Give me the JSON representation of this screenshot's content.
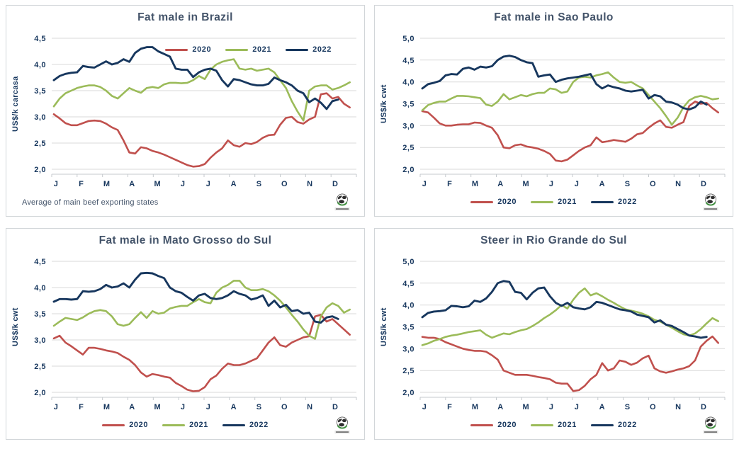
{
  "colors": {
    "red_2020": "#C0504D",
    "green_2021": "#9BBB59",
    "navy_2022": "#17375E",
    "grid": "#D9D9D9",
    "axis_line": "#C4C9CD",
    "tick_text": "#17375E",
    "title_text": "#44546A",
    "panel_border": "#D2D6D9"
  },
  "legend_labels": [
    "2020",
    "2021",
    "2022"
  ],
  "chart_data": [
    {
      "type": "line",
      "title": "Fat male in Brazil",
      "ylabel": "US$/k carcasa",
      "footnote": "Average  of main beef exporting states",
      "legend_position": "top-right",
      "ylim": [
        2.0,
        4.5
      ],
      "yticks": [
        4.5,
        4.0,
        3.5,
        3.0,
        2.5,
        2.0
      ],
      "grid": true,
      "x_labels": [
        "J",
        "F",
        "M",
        "A",
        "M",
        "J",
        "J",
        "A",
        "S",
        "O",
        "N",
        "D"
      ],
      "series": [
        {
          "name": "2020",
          "color": "#C0504D",
          "width": 2.6,
          "values": [
            3.05,
            2.97,
            2.88,
            2.84,
            2.84,
            2.88,
            2.92,
            2.93,
            2.92,
            2.87,
            2.8,
            2.75,
            2.55,
            2.32,
            2.3,
            2.42,
            2.4,
            2.35,
            2.32,
            2.28,
            2.23,
            2.18,
            2.13,
            2.08,
            2.05,
            2.06,
            2.1,
            2.22,
            2.32,
            2.4,
            2.55,
            2.46,
            2.43,
            2.5,
            2.48,
            2.52,
            2.6,
            2.65,
            2.66,
            2.85,
            2.98,
            3.0,
            2.9,
            2.87,
            2.95,
            3.0,
            3.43,
            3.45,
            3.35,
            3.38,
            3.25,
            3.18
          ]
        },
        {
          "name": "2021",
          "color": "#9BBB59",
          "width": 2.6,
          "values": [
            3.2,
            3.35,
            3.45,
            3.5,
            3.55,
            3.58,
            3.6,
            3.6,
            3.57,
            3.5,
            3.4,
            3.35,
            3.45,
            3.55,
            3.5,
            3.46,
            3.55,
            3.57,
            3.55,
            3.62,
            3.65,
            3.65,
            3.64,
            3.65,
            3.7,
            3.78,
            3.72,
            3.9,
            4.0,
            4.05,
            4.08,
            4.1,
            3.92,
            3.9,
            3.92,
            3.88,
            3.9,
            3.92,
            3.85,
            3.7,
            3.55,
            3.3,
            3.1,
            2.93,
            3.5,
            3.58,
            3.6,
            3.6,
            3.52,
            3.55,
            3.6,
            3.66
          ]
        },
        {
          "name": "2022",
          "color": "#17375E",
          "width": 2.9,
          "values": [
            3.7,
            3.78,
            3.82,
            3.84,
            3.85,
            3.97,
            3.95,
            3.94,
            4.0,
            4.06,
            4.0,
            4.03,
            4.1,
            4.05,
            4.22,
            4.3,
            4.33,
            4.33,
            4.25,
            4.2,
            4.15,
            3.92,
            3.9,
            3.9,
            3.76,
            3.85,
            3.9,
            3.92,
            3.88,
            3.7,
            3.58,
            3.72,
            3.7,
            3.66,
            3.62,
            3.6,
            3.6,
            3.63,
            3.75,
            3.7,
            3.66,
            3.6,
            3.5,
            3.45,
            3.28,
            3.35,
            3.27,
            3.15,
            3.3,
            3.33
          ]
        }
      ]
    },
    {
      "type": "line",
      "title": "Fat male in Sao Paulo",
      "ylabel": "US$/k cwt",
      "legend_position": "bottom",
      "ylim": [
        2.0,
        5.0
      ],
      "yticks": [
        5.0,
        4.5,
        4.0,
        3.5,
        3.0,
        2.5,
        2.0
      ],
      "grid": true,
      "x_labels": [
        "J",
        "F",
        "M",
        "A",
        "M",
        "J",
        "J",
        "A",
        "S",
        "O",
        "N",
        "D"
      ],
      "series": [
        {
          "name": "2020",
          "color": "#C0504D",
          "width": 2.6,
          "values": [
            3.33,
            3.3,
            3.18,
            3.05,
            3.0,
            3.0,
            3.02,
            3.03,
            3.03,
            3.07,
            3.06,
            3.0,
            2.95,
            2.78,
            2.5,
            2.48,
            2.55,
            2.57,
            2.52,
            2.5,
            2.47,
            2.42,
            2.35,
            2.2,
            2.18,
            2.22,
            2.32,
            2.42,
            2.5,
            2.55,
            2.73,
            2.62,
            2.64,
            2.67,
            2.65,
            2.63,
            2.7,
            2.8,
            2.83,
            2.95,
            3.05,
            3.12,
            2.97,
            2.95,
            3.02,
            3.08,
            3.45,
            3.55,
            3.5,
            3.52,
            3.4,
            3.3
          ]
        },
        {
          "name": "2021",
          "color": "#9BBB59",
          "width": 2.6,
          "values": [
            3.35,
            3.47,
            3.52,
            3.55,
            3.55,
            3.62,
            3.68,
            3.68,
            3.67,
            3.65,
            3.63,
            3.48,
            3.45,
            3.55,
            3.72,
            3.6,
            3.65,
            3.7,
            3.67,
            3.72,
            3.75,
            3.75,
            3.85,
            3.83,
            3.75,
            3.78,
            4.0,
            4.1,
            4.12,
            4.1,
            4.15,
            4.18,
            4.22,
            4.1,
            4.0,
            3.98,
            4.0,
            3.92,
            3.85,
            3.7,
            3.55,
            3.4,
            3.22,
            3.02,
            3.18,
            3.42,
            3.58,
            3.65,
            3.68,
            3.65,
            3.6,
            3.62
          ]
        },
        {
          "name": "2022",
          "color": "#17375E",
          "width": 2.9,
          "values": [
            3.85,
            3.95,
            3.98,
            4.02,
            4.15,
            4.18,
            4.17,
            4.3,
            4.33,
            4.28,
            4.35,
            4.33,
            4.36,
            4.5,
            4.58,
            4.6,
            4.57,
            4.5,
            4.45,
            4.43,
            4.12,
            4.15,
            4.17,
            4.0,
            4.05,
            4.08,
            4.1,
            4.12,
            4.15,
            4.18,
            3.95,
            3.85,
            3.92,
            3.88,
            3.85,
            3.8,
            3.78,
            3.8,
            3.82,
            3.62,
            3.7,
            3.67,
            3.55,
            3.53,
            3.48,
            3.4,
            3.37,
            3.42,
            3.55,
            3.48
          ]
        }
      ]
    },
    {
      "type": "line",
      "title": "Fat male in Mato Grosso do Sul",
      "ylabel": "US$/k cwt",
      "legend_position": "bottom",
      "ylim": [
        2.0,
        4.5
      ],
      "yticks": [
        4.5,
        4.0,
        3.5,
        3.0,
        2.5,
        2.0
      ],
      "grid": true,
      "x_labels": [
        "J",
        "F",
        "M",
        "A",
        "M",
        "J",
        "J",
        "A",
        "S",
        "O",
        "N",
        "D"
      ],
      "series": [
        {
          "name": "2020",
          "color": "#C0504D",
          "width": 2.6,
          "values": [
            3.03,
            3.08,
            2.95,
            2.88,
            2.8,
            2.72,
            2.85,
            2.85,
            2.83,
            2.8,
            2.78,
            2.75,
            2.68,
            2.62,
            2.52,
            2.38,
            2.3,
            2.35,
            2.33,
            2.3,
            2.28,
            2.18,
            2.12,
            2.05,
            2.02,
            2.03,
            2.1,
            2.25,
            2.32,
            2.45,
            2.55,
            2.52,
            2.52,
            2.55,
            2.6,
            2.65,
            2.8,
            2.95,
            3.05,
            2.9,
            2.87,
            2.95,
            3.0,
            3.05,
            3.07,
            3.45,
            3.48,
            3.35,
            3.4,
            3.3,
            3.2,
            3.1
          ]
        },
        {
          "name": "2021",
          "color": "#9BBB59",
          "width": 2.6,
          "values": [
            3.27,
            3.35,
            3.42,
            3.4,
            3.38,
            3.43,
            3.5,
            3.55,
            3.57,
            3.55,
            3.45,
            3.3,
            3.27,
            3.3,
            3.42,
            3.53,
            3.42,
            3.55,
            3.5,
            3.52,
            3.6,
            3.63,
            3.65,
            3.65,
            3.72,
            3.78,
            3.72,
            3.7,
            3.9,
            4.0,
            4.05,
            4.13,
            4.13,
            4.0,
            3.95,
            3.95,
            3.97,
            3.93,
            3.85,
            3.75,
            3.62,
            3.48,
            3.35,
            3.2,
            3.08,
            3.02,
            3.45,
            3.62,
            3.7,
            3.65,
            3.52,
            3.58
          ]
        },
        {
          "name": "2022",
          "color": "#17375E",
          "width": 2.9,
          "values": [
            3.73,
            3.78,
            3.78,
            3.77,
            3.78,
            3.93,
            3.92,
            3.93,
            3.97,
            4.05,
            4.0,
            4.02,
            4.08,
            4.0,
            4.15,
            4.27,
            4.28,
            4.27,
            4.22,
            4.18,
            4.0,
            3.93,
            3.9,
            3.82,
            3.75,
            3.85,
            3.88,
            3.8,
            3.78,
            3.8,
            3.85,
            3.93,
            3.88,
            3.85,
            3.77,
            3.8,
            3.85,
            3.65,
            3.75,
            3.62,
            3.67,
            3.55,
            3.57,
            3.5,
            3.52,
            3.35,
            3.33,
            3.43,
            3.45,
            3.4
          ]
        }
      ]
    },
    {
      "type": "line",
      "title": "Steer  in Rio Grande do Sul",
      "ylabel": "US$/k cwt",
      "legend_position": "bottom",
      "ylim": [
        2.0,
        5.0
      ],
      "yticks": [
        5.0,
        4.5,
        4.0,
        3.5,
        3.0,
        2.5,
        2.0
      ],
      "grid": true,
      "x_labels": [
        "J",
        "F",
        "M",
        "A",
        "M",
        "J",
        "J",
        "A",
        "S",
        "O",
        "N",
        "D"
      ],
      "series": [
        {
          "name": "2020",
          "color": "#C0504D",
          "width": 2.6,
          "values": [
            3.27,
            3.25,
            3.25,
            3.22,
            3.15,
            3.1,
            3.05,
            3.0,
            2.97,
            2.95,
            2.95,
            2.93,
            2.85,
            2.75,
            2.5,
            2.45,
            2.4,
            2.4,
            2.4,
            2.38,
            2.35,
            2.33,
            2.3,
            2.22,
            2.2,
            2.2,
            2.03,
            2.05,
            2.15,
            2.3,
            2.4,
            2.67,
            2.5,
            2.55,
            2.73,
            2.7,
            2.63,
            2.68,
            2.78,
            2.84,
            2.55,
            2.48,
            2.45,
            2.48,
            2.52,
            2.55,
            2.6,
            2.73,
            3.05,
            3.18,
            3.28,
            3.13
          ]
        },
        {
          "name": "2021",
          "color": "#9BBB59",
          "width": 2.6,
          "values": [
            3.08,
            3.12,
            3.18,
            3.22,
            3.27,
            3.3,
            3.32,
            3.35,
            3.38,
            3.4,
            3.42,
            3.32,
            3.25,
            3.3,
            3.35,
            3.33,
            3.38,
            3.42,
            3.45,
            3.52,
            3.6,
            3.7,
            3.78,
            3.88,
            4.0,
            3.92,
            4.12,
            4.28,
            4.38,
            4.22,
            4.27,
            4.2,
            4.12,
            4.05,
            3.97,
            3.9,
            3.87,
            3.84,
            3.8,
            3.74,
            3.66,
            3.62,
            3.55,
            3.48,
            3.4,
            3.33,
            3.3,
            3.35,
            3.45,
            3.58,
            3.7,
            3.63
          ]
        },
        {
          "name": "2022",
          "color": "#17375E",
          "width": 2.9,
          "values": [
            3.72,
            3.82,
            3.85,
            3.86,
            3.88,
            3.98,
            3.97,
            3.95,
            3.97,
            4.1,
            4.07,
            4.15,
            4.3,
            4.5,
            4.55,
            4.53,
            4.3,
            4.28,
            4.13,
            4.28,
            4.38,
            4.4,
            4.2,
            4.05,
            3.98,
            4.05,
            3.95,
            3.92,
            3.9,
            3.95,
            4.07,
            4.05,
            4.0,
            3.95,
            3.9,
            3.88,
            3.85,
            3.78,
            3.75,
            3.72,
            3.6,
            3.65,
            3.55,
            3.52,
            3.45,
            3.38,
            3.3,
            3.28,
            3.25,
            3.27
          ]
        }
      ]
    }
  ]
}
